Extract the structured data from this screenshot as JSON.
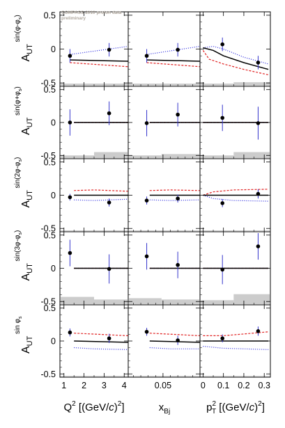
{
  "watermark": {
    "line1": "COMPASS 2010 proton data",
    "line2": "preliminary"
  },
  "colors": {
    "data": "#000000",
    "error_bar": "#3333cc",
    "theory_solid": "#000000",
    "theory_red": "#e02020",
    "theory_blue": "#2222dd",
    "systematic_band": "#cccccc"
  },
  "row_labels": [
    {
      "sup": "sin(φ-φ",
      "sub": "s",
      "close": ")",
      "base": "A",
      "basesub": "UT"
    },
    {
      "sup": "sin(φ+φ",
      "sub": "s",
      "close": ")",
      "base": "A",
      "basesub": "UT"
    },
    {
      "sup": "sin(2φ-φ",
      "sub": "s",
      "close": ")",
      "base": "A",
      "basesub": "UT"
    },
    {
      "sup": "sin(3φ-φ",
      "sub": "s",
      "close": ")",
      "base": "A",
      "basesub": "UT"
    },
    {
      "sup": "sin φ",
      "sub": "s",
      "close": "",
      "base": "A",
      "basesub": "UT"
    }
  ],
  "x_titles": [
    {
      "main": "Q",
      "sup": "2",
      "rest": " [(GeV/",
      "italic": "c",
      "tail": ")",
      "tailsup": "2",
      "end": "]"
    },
    {
      "main": "x",
      "sub": "Bj"
    },
    {
      "main": "p",
      "sup": "2",
      "sub": "T",
      "rest": " [(GeV/",
      "italic": "c",
      "tail": ")",
      "tailsup": "2",
      "end": "]"
    }
  ],
  "chart_data": {
    "type": "scatter",
    "ylim": [
      -0.55,
      0.55
    ],
    "y_ticks": [
      "0.5",
      "0",
      "-0.5"
    ],
    "columns": [
      {
        "variable": "Q2",
        "xlim": [
          0.8,
          4.2
        ],
        "x_ticks": [
          "1",
          "2",
          "3",
          "4"
        ]
      },
      {
        "variable": "xBj",
        "xlim": [
          0.003,
          0.1
        ],
        "x_ticks": [
          "0.05"
        ]
      },
      {
        "variable": "pT2",
        "xlim": [
          -0.015,
          0.33
        ],
        "x_ticks": [
          "0",
          "0.1",
          "0.2",
          "0.3"
        ]
      }
    ],
    "panels": [
      [
        {
          "points": [
            {
              "x": 1.3,
              "y": -0.1,
              "err": 0.1
            },
            {
              "x": 3.25,
              "y": -0.01,
              "err": 0.1
            }
          ],
          "curves": {
            "solid": [
              [
                1.3,
                -0.16
              ],
              [
                4.2,
                -0.18
              ]
            ],
            "red": [
              [
                1.3,
                -0.2
              ],
              [
                4.2,
                -0.26
              ]
            ],
            "blue": [
              [
                1.3,
                -0.08
              ],
              [
                4.2,
                0.04
              ]
            ]
          },
          "band": [
            {
              "x0": 0.8,
              "x1": 4.2,
              "h": 0.04
            }
          ]
        },
        {
          "points": [
            {
              "x": 0.028,
              "y": -0.1,
              "err": 0.1
            },
            {
              "x": 0.07,
              "y": -0.01,
              "err": 0.1
            }
          ],
          "curves": {
            "solid": [
              [
                0.028,
                -0.16
              ],
              [
                0.1,
                -0.18
              ]
            ],
            "red": [
              [
                0.028,
                -0.2
              ],
              [
                0.1,
                -0.26
              ]
            ],
            "blue": [
              [
                0.028,
                -0.08
              ],
              [
                0.1,
                0.04
              ]
            ]
          },
          "band": [
            {
              "x0": 0.003,
              "x1": 0.1,
              "h": 0.04
            }
          ]
        },
        {
          "points": [
            {
              "x": 0.095,
              "y": 0.07,
              "err": 0.1
            },
            {
              "x": 0.27,
              "y": -0.2,
              "err": 0.1
            }
          ],
          "curves": {
            "solid": [
              [
                0.0,
                0.02
              ],
              [
                0.05,
                -0.02
              ],
              [
                0.1,
                -0.1
              ],
              [
                0.2,
                -0.2
              ],
              [
                0.32,
                -0.3
              ]
            ],
            "red": [
              [
                0.0,
                -0.02
              ],
              [
                0.03,
                -0.15
              ],
              [
                0.1,
                -0.22
              ],
              [
                0.2,
                -0.3
              ],
              [
                0.32,
                -0.38
              ]
            ],
            "blue": [
              [
                0.0,
                0.02
              ],
              [
                0.05,
                0.04
              ],
              [
                0.1,
                0.0
              ],
              [
                0.2,
                -0.12
              ],
              [
                0.32,
                -0.22
              ]
            ]
          },
          "band": [
            {
              "x0": -0.015,
              "x1": 0.15,
              "h": 0.04
            },
            {
              "x0": 0.15,
              "x1": 0.33,
              "h": 0.06
            }
          ]
        }
      ],
      [
        {
          "points": [
            {
              "x": 1.3,
              "y": 0.0,
              "err": 0.2
            },
            {
              "x": 3.25,
              "y": 0.14,
              "err": 0.18
            }
          ],
          "curves": {
            "solid": [
              [
                1.5,
                0.0
              ],
              [
                4.2,
                0.0
              ]
            ],
            "red": [
              [
                1.5,
                0.0
              ],
              [
                4.2,
                0.0
              ]
            ],
            "blue": [
              [
                1.5,
                0.0
              ],
              [
                4.2,
                0.0
              ]
            ]
          },
          "band": [
            {
              "x0": 0.8,
              "x1": 2.5,
              "h": 0.05
            },
            {
              "x0": 2.5,
              "x1": 4.2,
              "h": 0.1
            }
          ]
        },
        {
          "points": [
            {
              "x": 0.028,
              "y": -0.01,
              "err": 0.2
            },
            {
              "x": 0.07,
              "y": 0.12,
              "err": 0.18
            }
          ],
          "curves": {
            "solid": [
              [
                0.032,
                0.0
              ],
              [
                0.1,
                0.0
              ]
            ],
            "red": [
              [
                0.032,
                0.0
              ],
              [
                0.1,
                0.0
              ]
            ],
            "blue": [
              [
                0.032,
                0.0
              ],
              [
                0.1,
                0.0
              ]
            ]
          },
          "band": [
            {
              "x0": 0.003,
              "x1": 0.048,
              "h": 0.05
            },
            {
              "x0": 0.048,
              "x1": 0.1,
              "h": 0.07
            }
          ]
        },
        {
          "points": [
            {
              "x": 0.095,
              "y": 0.07,
              "err": 0.2
            },
            {
              "x": 0.27,
              "y": -0.01,
              "err": 0.25
            }
          ],
          "curves": {
            "solid": [
              [
                0.0,
                0.0
              ],
              [
                0.32,
                0.0
              ]
            ],
            "red": [
              [
                0.0,
                0.0
              ],
              [
                0.32,
                0.0
              ]
            ],
            "blue": [
              [
                0.0,
                0.0
              ],
              [
                0.32,
                0.0
              ]
            ]
          },
          "band": [
            {
              "x0": -0.015,
              "x1": 0.15,
              "h": 0.05
            },
            {
              "x0": 0.15,
              "x1": 0.33,
              "h": 0.1
            }
          ]
        }
      ],
      [
        {
          "points": [
            {
              "x": 1.3,
              "y": -0.03,
              "err": 0.05
            },
            {
              "x": 3.25,
              "y": -0.11,
              "err": 0.06
            }
          ],
          "curves": {
            "solid": [
              [
                1.5,
                0.0
              ],
              [
                4.2,
                0.0
              ]
            ],
            "red": [
              [
                1.5,
                0.07
              ],
              [
                2.5,
                0.08
              ],
              [
                4.2,
                0.06
              ]
            ],
            "blue": [
              [
                1.5,
                -0.07
              ],
              [
                2.5,
                -0.08
              ],
              [
                4.2,
                -0.06
              ]
            ]
          },
          "band": [
            {
              "x0": 0.8,
              "x1": 4.2,
              "h": 0.02
            }
          ]
        },
        {
          "points": [
            {
              "x": 0.028,
              "y": -0.08,
              "err": 0.06
            },
            {
              "x": 0.07,
              "y": -0.05,
              "err": 0.06
            }
          ],
          "curves": {
            "solid": [
              [
                0.032,
                0.0
              ],
              [
                0.1,
                0.0
              ]
            ],
            "red": [
              [
                0.032,
                0.07
              ],
              [
                0.06,
                0.08
              ],
              [
                0.1,
                0.07
              ]
            ],
            "blue": [
              [
                0.032,
                -0.07
              ],
              [
                0.06,
                -0.08
              ],
              [
                0.1,
                -0.07
              ]
            ]
          },
          "band": [
            {
              "x0": 0.003,
              "x1": 0.1,
              "h": 0.02
            }
          ]
        },
        {
          "points": [
            {
              "x": 0.095,
              "y": -0.12,
              "err": 0.06
            },
            {
              "x": 0.27,
              "y": 0.02,
              "err": 0.07
            }
          ],
          "curves": {
            "solid": [
              [
                0.0,
                0.0
              ],
              [
                0.32,
                0.0
              ]
            ],
            "red": [
              [
                0.0,
                0.0
              ],
              [
                0.05,
                0.05
              ],
              [
                0.15,
                0.08
              ],
              [
                0.32,
                0.09
              ]
            ],
            "blue": [
              [
                0.0,
                0.0
              ],
              [
                0.05,
                -0.05
              ],
              [
                0.15,
                -0.08
              ],
              [
                0.32,
                -0.09
              ]
            ]
          },
          "band": [
            {
              "x0": -0.015,
              "x1": 0.33,
              "h": 0.02
            }
          ]
        }
      ],
      [
        {
          "points": [
            {
              "x": 1.3,
              "y": 0.23,
              "err": 0.2
            },
            {
              "x": 3.25,
              "y": -0.01,
              "err": 0.22
            }
          ],
          "curves": {
            "solid": [
              [
                1.5,
                0.0
              ],
              [
                4.2,
                0.0
              ]
            ],
            "red": [
              [
                1.5,
                0.0
              ],
              [
                4.2,
                0.0
              ]
            ],
            "blue": [
              [
                1.5,
                0.0
              ],
              [
                4.2,
                0.0
              ]
            ]
          },
          "band": [
            {
              "x0": 0.8,
              "x1": 2.5,
              "h": 0.12
            },
            {
              "x0": 2.5,
              "x1": 4.2,
              "h": 0.08
            }
          ]
        },
        {
          "points": [
            {
              "x": 0.028,
              "y": 0.18,
              "err": 0.2
            },
            {
              "x": 0.07,
              "y": 0.05,
              "err": 0.2
            }
          ],
          "curves": {
            "solid": [
              [
                0.032,
                0.0
              ],
              [
                0.1,
                0.0
              ]
            ],
            "red": [
              [
                0.032,
                0.0
              ],
              [
                0.1,
                0.0
              ]
            ],
            "blue": [
              [
                0.032,
                0.0
              ],
              [
                0.1,
                0.0
              ]
            ]
          },
          "band": [
            {
              "x0": 0.003,
              "x1": 0.048,
              "h": 0.1
            },
            {
              "x0": 0.048,
              "x1": 0.1,
              "h": 0.08
            }
          ]
        },
        {
          "points": [
            {
              "x": 0.095,
              "y": -0.02,
              "err": 0.22
            },
            {
              "x": 0.27,
              "y": 0.33,
              "err": 0.2
            }
          ],
          "curves": {
            "solid": [
              [
                0.0,
                0.0
              ],
              [
                0.32,
                0.0
              ]
            ],
            "red": [
              [
                0.0,
                0.0
              ],
              [
                0.32,
                0.0
              ]
            ],
            "blue": [
              [
                0.0,
                0.0
              ],
              [
                0.32,
                0.0
              ]
            ]
          },
          "band": [
            {
              "x0": -0.015,
              "x1": 0.15,
              "h": 0.07
            },
            {
              "x0": 0.15,
              "x1": 0.33,
              "h": 0.16
            }
          ]
        }
      ],
      [
        {
          "points": [
            {
              "x": 1.3,
              "y": 0.13,
              "err": 0.06
            },
            {
              "x": 3.25,
              "y": 0.04,
              "err": 0.07
            }
          ],
          "curves": {
            "solid": [
              [
                1.5,
                0.0
              ],
              [
                4.2,
                -0.02
              ]
            ],
            "red": [
              [
                1.5,
                0.12
              ],
              [
                4.2,
                0.08
              ]
            ],
            "blue": [
              [
                1.5,
                -0.1
              ],
              [
                2.5,
                -0.12
              ],
              [
                4.2,
                -0.13
              ]
            ]
          },
          "band": [
            {
              "x0": 0.8,
              "x1": 4.2,
              "h": 0.02
            }
          ]
        },
        {
          "points": [
            {
              "x": 0.028,
              "y": 0.14,
              "err": 0.06
            },
            {
              "x": 0.07,
              "y": 0.01,
              "err": 0.07
            }
          ],
          "curves": {
            "solid": [
              [
                0.032,
                0.0
              ],
              [
                0.1,
                -0.02
              ]
            ],
            "red": [
              [
                0.032,
                0.12
              ],
              [
                0.1,
                0.08
              ]
            ],
            "blue": [
              [
                0.032,
                -0.1
              ],
              [
                0.06,
                -0.12
              ],
              [
                0.1,
                -0.12
              ]
            ]
          },
          "band": [
            {
              "x0": 0.003,
              "x1": 0.1,
              "h": 0.02
            }
          ]
        },
        {
          "points": [
            {
              "x": 0.095,
              "y": 0.04,
              "err": 0.06
            },
            {
              "x": 0.27,
              "y": 0.15,
              "err": 0.07
            }
          ],
          "curves": {
            "solid": [
              [
                0.0,
                0.0
              ],
              [
                0.32,
                0.0
              ]
            ],
            "red": [
              [
                0.0,
                0.08
              ],
              [
                0.1,
                0.08
              ],
              [
                0.32,
                0.14
              ]
            ],
            "blue": [
              [
                0.0,
                -0.08
              ],
              [
                0.1,
                -0.11
              ],
              [
                0.32,
                -0.13
              ]
            ]
          },
          "band": [
            {
              "x0": -0.015,
              "x1": 0.33,
              "h": 0.02
            }
          ]
        }
      ]
    ]
  }
}
